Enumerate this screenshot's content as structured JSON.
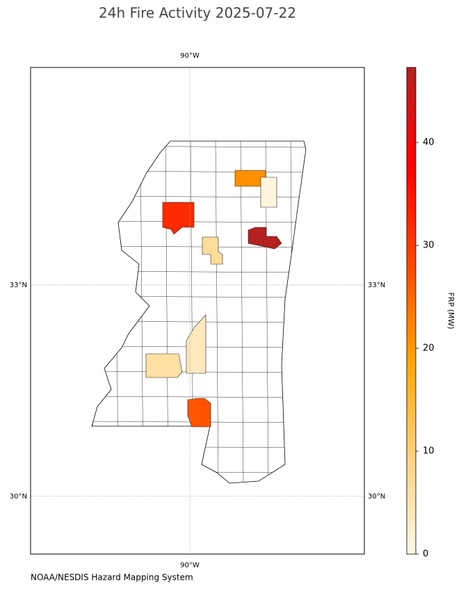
{
  "title": "24h Fire Activity 2025-07-22",
  "footer": "NOAA/NESDIS Hazard Mapping System",
  "map": {
    "xlim": [
      -92.6,
      -87.15
    ],
    "ylim": [
      29.18,
      36.09
    ],
    "xticks": [
      {
        "value": -90,
        "label": "90°W"
      }
    ],
    "yticks": [
      {
        "value": 33,
        "label": "33°N"
      },
      {
        "value": 30,
        "label": "30°N"
      }
    ],
    "grid": true,
    "county_frp": [
      32,
      21,
      1,
      47,
      7,
      4,
      6,
      27
    ]
  },
  "colorbar": {
    "label": "FRP (MW)",
    "lim": [
      0,
      47.3
    ],
    "ticks": [
      0,
      10,
      20,
      30,
      40
    ],
    "cmap": [
      "#fff8e7",
      "#ffd27f",
      "#ffa500",
      "#ff4500",
      "#ff0000",
      "#b22222"
    ]
  }
}
